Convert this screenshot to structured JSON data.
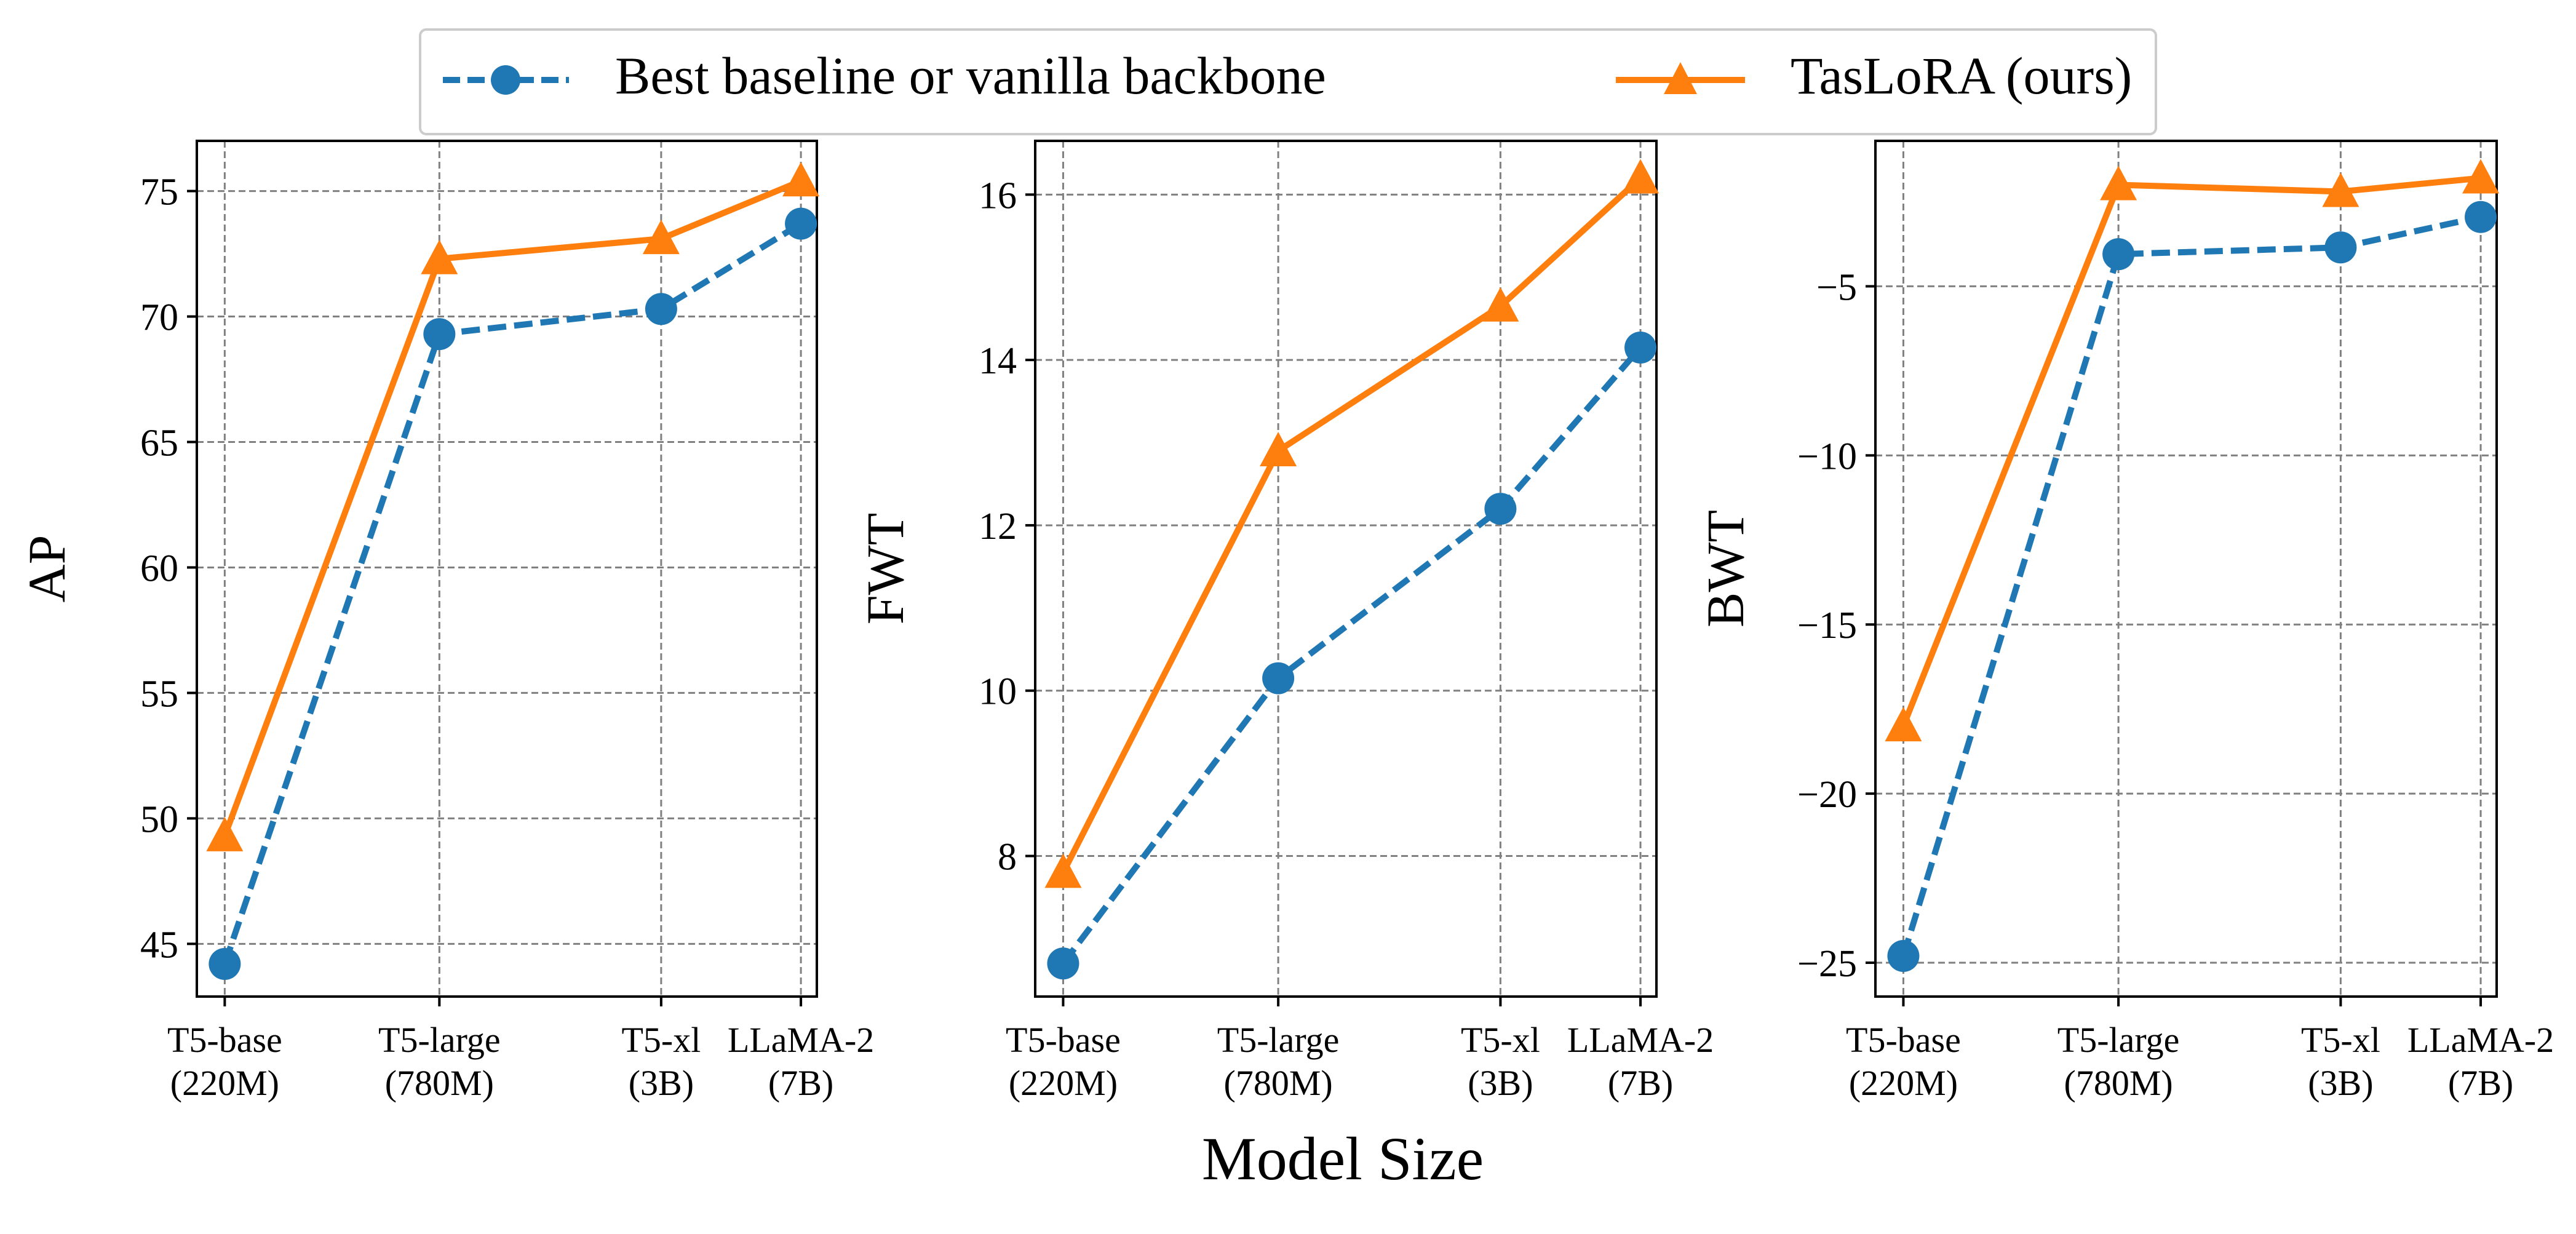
{
  "chart_data": {
    "type": "line",
    "xlabel": "Model Size",
    "categories": [
      "T5-base\n(220M)",
      "T5-large\n(780M)",
      "T5-xl\n(3B)",
      "LLaMA-2\n(7B)"
    ],
    "x_positions": [
      0,
      1,
      2,
      2.65
    ],
    "grid": true,
    "legend": {
      "placement": "top-center",
      "entries": [
        {
          "name": "Best baseline or vanilla backbone",
          "color": "#1f77b4",
          "marker": "circle",
          "linestyle": "dashed"
        },
        {
          "name": "TasLoRA (ours)",
          "color": "#ff7f0e",
          "marker": "triangle",
          "linestyle": "solid"
        }
      ]
    },
    "panels": [
      {
        "ylabel": "AP",
        "ylim": [
          42.9,
          77.0
        ],
        "yticks": [
          45,
          50,
          55,
          60,
          65,
          70,
          75
        ],
        "series": [
          {
            "name": "Best baseline or vanilla backbone",
            "values": [
              44.2,
              69.3,
              70.3,
              73.7
            ]
          },
          {
            "name": "TasLoRA (ours)",
            "values": [
              49.3,
              72.3,
              73.1,
              75.4
            ]
          }
        ]
      },
      {
        "ylabel": "FWT",
        "ylim": [
          6.3,
          16.65
        ],
        "yticks": [
          8,
          10,
          12,
          14,
          16
        ],
        "series": [
          {
            "name": "Best baseline or vanilla backbone",
            "values": [
              6.7,
              10.15,
              12.2,
              14.15
            ]
          },
          {
            "name": "TasLoRA (ours)",
            "values": [
              7.8,
              12.9,
              14.65,
              16.2
            ]
          }
        ]
      },
      {
        "ylabel": "BWT",
        "ylim": [
          -26.0,
          -0.7
        ],
        "yticks": [
          -25,
          -20,
          -15,
          -10,
          -5
        ],
        "ytick_labels": [
          "−25",
          "−20",
          "−15",
          "−10",
          "−5"
        ],
        "series": [
          {
            "name": "Best baseline or vanilla backbone",
            "values": [
              -24.8,
              -4.05,
              -3.85,
              -2.95
            ]
          },
          {
            "name": "TasLoRA (ours)",
            "values": [
              -18.0,
              -2.0,
              -2.2,
              -1.8
            ]
          }
        ]
      }
    ]
  }
}
